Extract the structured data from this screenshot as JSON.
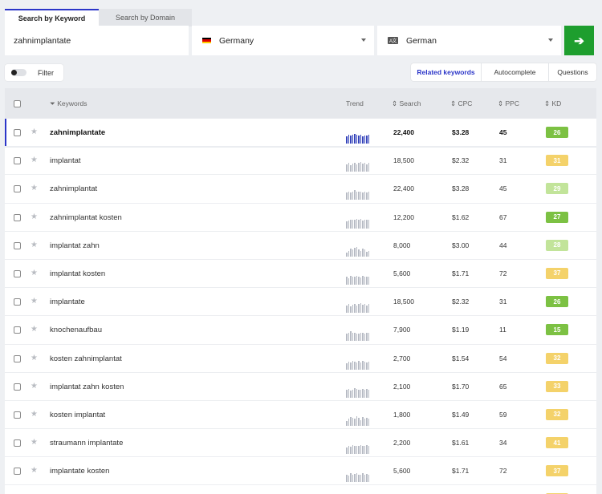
{
  "tabs": [
    {
      "label": "Search by Keyword",
      "active": true
    },
    {
      "label": "Search by Domain",
      "active": false
    }
  ],
  "search": {
    "keyword": "zahnimplantate",
    "location": "Germany",
    "location_flag": [
      "#000000",
      "#dd0000",
      "#ffce00"
    ],
    "language_icon": "translate-icon",
    "language": "German",
    "go_icon": "arrow-right-icon",
    "go_color": "#1e9e2e"
  },
  "filter": {
    "label": "Filter",
    "enabled": false
  },
  "modes": [
    {
      "label": "Related keywords",
      "active": true
    },
    {
      "label": "Autocomplete",
      "active": false
    },
    {
      "label": "Questions",
      "active": false
    }
  ],
  "table": {
    "headers": {
      "keywords": "Keywords",
      "trend": "Trend",
      "search": "Search",
      "cpc": "CPC",
      "ppc": "PPC",
      "kd": "KD"
    },
    "rows": [
      {
        "keyword": "zahnimplantate",
        "trend": [
          0.75,
          0.9,
          0.8,
          0.9,
          1.0,
          0.9,
          0.85,
          0.9,
          0.75,
          0.85,
          0.8,
          0.9
        ],
        "search": "22,400",
        "cpc": "$3.28",
        "ppc": "45",
        "kd": "26",
        "kd_color": "#7cc143"
      },
      {
        "keyword": "implantat",
        "trend": [
          0.8,
          0.9,
          0.7,
          0.85,
          0.9,
          0.8,
          0.9,
          1.0,
          0.85,
          0.9,
          0.8,
          0.9
        ],
        "search": "18,500",
        "cpc": "$2.32",
        "ppc": "31",
        "kd": "31",
        "kd_color": "#f4d26a"
      },
      {
        "keyword": "zahnimplantat",
        "trend": [
          0.75,
          0.9,
          0.8,
          0.9,
          1.0,
          0.9,
          0.85,
          0.9,
          0.75,
          0.85,
          0.8,
          0.9
        ],
        "search": "22,400",
        "cpc": "$3.28",
        "ppc": "45",
        "kd": "29",
        "kd_color": "#c2e49a"
      },
      {
        "keyword": "zahnimplantat kosten",
        "trend": [
          0.7,
          0.8,
          0.9,
          0.85,
          0.9,
          0.95,
          0.9,
          1.0,
          0.8,
          0.85,
          0.9,
          0.85
        ],
        "search": "12,200",
        "cpc": "$1.62",
        "ppc": "67",
        "kd": "27",
        "kd_color": "#7cc143"
      },
      {
        "keyword": "implantat zahn",
        "trend": [
          0.4,
          0.6,
          0.8,
          0.7,
          0.9,
          1.0,
          0.7,
          0.6,
          0.8,
          0.7,
          0.5,
          0.6
        ],
        "search": "8,000",
        "cpc": "$3.00",
        "ppc": "44",
        "kd": "28",
        "kd_color": "#c2e49a"
      },
      {
        "keyword": "implantat kosten",
        "trend": [
          0.8,
          0.7,
          0.9,
          0.8,
          0.85,
          0.9,
          0.8,
          0.75,
          0.9,
          0.8,
          0.85,
          0.8
        ],
        "search": "5,600",
        "cpc": "$1.71",
        "ppc": "72",
        "kd": "37",
        "kd_color": "#f4d26a"
      },
      {
        "keyword": "implantate",
        "trend": [
          0.8,
          0.9,
          0.7,
          0.85,
          0.9,
          0.8,
          0.9,
          1.0,
          0.85,
          0.9,
          0.8,
          0.9
        ],
        "search": "18,500",
        "cpc": "$2.32",
        "ppc": "31",
        "kd": "26",
        "kd_color": "#7cc143"
      },
      {
        "keyword": "knochenaufbau",
        "trend": [
          0.8,
          0.9,
          1.0,
          0.85,
          0.9,
          0.8,
          0.75,
          0.9,
          0.85,
          0.8,
          0.9,
          0.85
        ],
        "search": "7,900",
        "cpc": "$1.19",
        "ppc": "11",
        "kd": "15",
        "kd_color": "#7cc143"
      },
      {
        "keyword": "kosten zahnimplantat",
        "trend": [
          0.6,
          0.8,
          0.7,
          0.9,
          0.8,
          0.75,
          0.85,
          0.7,
          0.9,
          0.8,
          0.75,
          0.8
        ],
        "search": "2,700",
        "cpc": "$1.54",
        "ppc": "54",
        "kd": "32",
        "kd_color": "#f4d26a"
      },
      {
        "keyword": "implantat zahn kosten",
        "trend": [
          0.8,
          0.9,
          0.75,
          0.85,
          1.0,
          0.9,
          0.8,
          0.85,
          0.9,
          0.8,
          0.9,
          0.85
        ],
        "search": "2,100",
        "cpc": "$1.70",
        "ppc": "65",
        "kd": "33",
        "kd_color": "#f4d26a"
      },
      {
        "keyword": "kosten implantat",
        "trend": [
          0.5,
          0.7,
          0.9,
          0.8,
          0.7,
          1.0,
          0.8,
          0.6,
          0.9,
          0.7,
          0.8,
          0.75
        ],
        "search": "1,800",
        "cpc": "$1.49",
        "ppc": "59",
        "kd": "32",
        "kd_color": "#f4d26a"
      },
      {
        "keyword": "straumann implantate",
        "trend": [
          0.7,
          0.8,
          0.75,
          0.9,
          0.8,
          0.85,
          0.8,
          0.9,
          0.85,
          0.8,
          0.9,
          0.85
        ],
        "search": "2,200",
        "cpc": "$1.61",
        "ppc": "34",
        "kd": "41",
        "kd_color": "#f4d26a"
      },
      {
        "keyword": "implantate kosten",
        "trend": [
          0.8,
          0.7,
          0.9,
          0.8,
          0.85,
          0.9,
          0.8,
          0.75,
          0.9,
          0.8,
          0.85,
          0.8
        ],
        "search": "5,600",
        "cpc": "$1.71",
        "ppc": "72",
        "kd": "37",
        "kd_color": "#f4d26a"
      },
      {
        "keyword": "",
        "trend": [],
        "search": "",
        "cpc": "",
        "ppc": "",
        "kd": "",
        "kd_color": "#f4d26a"
      }
    ]
  }
}
